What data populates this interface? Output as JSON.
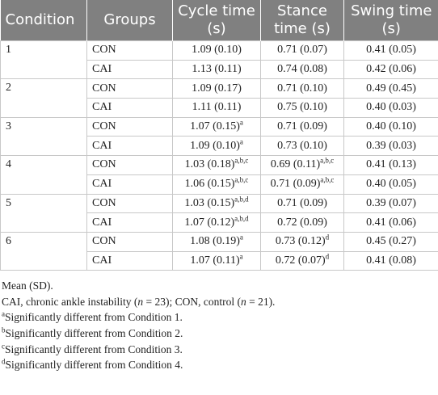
{
  "table": {
    "header": [
      "Condition",
      "Groups",
      "Cycle time (s)",
      "Stance time (s)",
      "Swing time (s)"
    ],
    "rows": [
      {
        "condition": "1",
        "groups": [
          {
            "group": "CON",
            "cells": [
              {
                "text": "1.09 (0.10)"
              },
              {
                "text": "0.71 (0.07)"
              },
              {
                "text": "0.41 (0.05)"
              }
            ]
          },
          {
            "group": "CAI",
            "cells": [
              {
                "text": "1.13 (0.11)"
              },
              {
                "text": "0.74 (0.08)"
              },
              {
                "text": "0.42 (0.06)"
              }
            ]
          }
        ]
      },
      {
        "condition": "2",
        "groups": [
          {
            "group": "CON",
            "cells": [
              {
                "text": "1.09 (0.17)"
              },
              {
                "text": "0.71 (0.10)"
              },
              {
                "text": "0.49 (0.45)"
              }
            ]
          },
          {
            "group": "CAI",
            "cells": [
              {
                "text": "1.11 (0.11)"
              },
              {
                "text": "0.75 (0.10)"
              },
              {
                "text": "0.40 (0.03)"
              }
            ]
          }
        ]
      },
      {
        "condition": "3",
        "groups": [
          {
            "group": "CON",
            "cells": [
              {
                "text": "1.07 (0.15)",
                "sup": "a"
              },
              {
                "text": "0.71 (0.09)"
              },
              {
                "text": "0.40 (0.10)"
              }
            ]
          },
          {
            "group": "CAI",
            "cells": [
              {
                "text": "1.09 (0.10)",
                "sup": "a"
              },
              {
                "text": "0.73 (0.10)"
              },
              {
                "text": "0.39 (0.03)"
              }
            ]
          }
        ]
      },
      {
        "condition": "4",
        "groups": [
          {
            "group": "CON",
            "cells": [
              {
                "text": "1.03 (0.18)",
                "sup": "a,b,c"
              },
              {
                "text": "0.69 (0.11)",
                "sup": "a,b,c"
              },
              {
                "text": "0.41 (0.13)"
              }
            ]
          },
          {
            "group": "CAI",
            "cells": [
              {
                "text": "1.06 (0.15)",
                "sup": "a,b,c"
              },
              {
                "text": "0.71 (0.09)",
                "sup": "a,b,c"
              },
              {
                "text": "0.40 (0.05)"
              }
            ]
          }
        ]
      },
      {
        "condition": "5",
        "groups": [
          {
            "group": "CON",
            "cells": [
              {
                "text": "1.03 (0.15)",
                "sup": "a,b,d"
              },
              {
                "text": "0.71 (0.09)"
              },
              {
                "text": "0.39 (0.07)"
              }
            ]
          },
          {
            "group": "CAI",
            "cells": [
              {
                "text": "1.07 (0.12)",
                "sup": "a,b,d"
              },
              {
                "text": "0.72 (0.09)"
              },
              {
                "text": "0.41 (0.06)"
              }
            ]
          }
        ]
      },
      {
        "condition": "6",
        "groups": [
          {
            "group": "CON",
            "cells": [
              {
                "text": "1.08 (0.19)",
                "sup": "a"
              },
              {
                "text": "0.73 (0.12)",
                "sup": "d"
              },
              {
                "text": "0.45 (0.27)"
              }
            ]
          },
          {
            "group": "CAI",
            "cells": [
              {
                "text": "1.07 (0.11)",
                "sup": "a"
              },
              {
                "text": "0.72 (0.07)",
                "sup": "d"
              },
              {
                "text": "0.41 (0.08)"
              }
            ]
          }
        ]
      }
    ]
  },
  "notes": [
    {
      "parts": [
        {
          "text": "Mean (SD)."
        }
      ]
    },
    {
      "parts": [
        {
          "text": "CAI, chronic ankle instability ("
        },
        {
          "text": "n",
          "italic": true
        },
        {
          "text": " = 23); CON, control ("
        },
        {
          "text": "n",
          "italic": true
        },
        {
          "text": " = 21)."
        }
      ]
    },
    {
      "mark": "a",
      "parts": [
        {
          "text": "Significantly different from Condition 1."
        }
      ]
    },
    {
      "mark": "b",
      "parts": [
        {
          "text": "Significantly different from Condition 2."
        }
      ]
    },
    {
      "mark": "c",
      "parts": [
        {
          "text": "Significantly different from Condition 3."
        }
      ]
    },
    {
      "mark": "d",
      "parts": [
        {
          "text": "Significantly different from Condition 4."
        }
      ]
    }
  ]
}
